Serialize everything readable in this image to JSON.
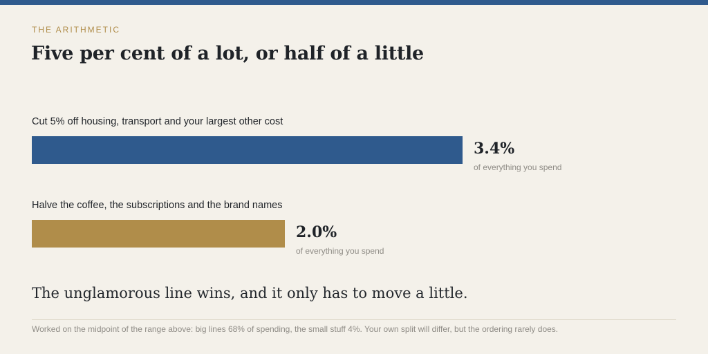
{
  "eyebrow": "THE ARITHMETIC",
  "headline": "Five per cent of a lot, or half of a little",
  "chart_data": {
    "type": "bar",
    "orientation": "horizontal",
    "categories": [
      "Cut 5% off housing, transport and your largest other cost",
      "Halve the coffee, the subscriptions and the brand names"
    ],
    "values": [
      3.4,
      2.0
    ],
    "value_labels": [
      "3.4%",
      "2.0%"
    ],
    "unit_label": "of everything you spend",
    "colors": [
      "#2f5a8d",
      "#b08d4a"
    ],
    "xlim": [
      0,
      3.4
    ],
    "grid": false
  },
  "conclusion": "The unglamorous line wins, and it only has to move a little.",
  "footnote": "Worked on the midpoint of the range above: big lines 68% of spending, the small stuff 4%. Your own split will differ, but the ordering rarely does."
}
